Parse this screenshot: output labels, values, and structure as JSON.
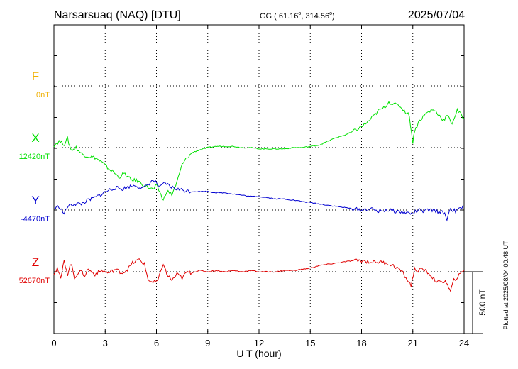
{
  "header": {
    "station": "Narsarsuaq (NAQ)  [DTU]",
    "coords_prefix": "GG ( 61.16",
    "coords_lon": ", 314.56",
    "coords_suffix": ")",
    "date": "2025/07/04"
  },
  "side_note": "Plotted at 2025/08/04 00:48 UT",
  "scale_bar_label": "500 nT",
  "colors": {
    "F": "#f0b000",
    "X": "#00e000",
    "Y": "#0000d0",
    "Z": "#e00000",
    "axis": "#000000"
  },
  "chart_data": {
    "type": "line",
    "xlabel": "U T (hour)",
    "xlim": [
      0,
      24
    ],
    "x_ticks": [
      0,
      3,
      6,
      9,
      12,
      15,
      18,
      21,
      24
    ],
    "scale_nT_per_bar": 500,
    "series": [
      {
        "name": "F",
        "baseline_label": "0nT",
        "baseline_nT": 0,
        "points": []
      },
      {
        "name": "X",
        "baseline_label": "12420nT",
        "baseline_nT": 12420,
        "points": [
          [
            0,
            12440
          ],
          [
            0.3,
            12470
          ],
          [
            0.6,
            12450
          ],
          [
            0.8,
            12490
          ],
          [
            1.0,
            12400
          ],
          [
            1.3,
            12420
          ],
          [
            1.6,
            12370
          ],
          [
            2.0,
            12350
          ],
          [
            2.4,
            12340
          ],
          [
            2.8,
            12300
          ],
          [
            3.2,
            12250
          ],
          [
            3.5,
            12220
          ],
          [
            3.8,
            12180
          ],
          [
            4.1,
            12210
          ],
          [
            4.5,
            12160
          ],
          [
            4.9,
            12150
          ],
          [
            5.2,
            12120
          ],
          [
            5.5,
            12100
          ],
          [
            5.8,
            12080
          ],
          [
            6.0,
            12110
          ],
          [
            6.2,
            12060
          ],
          [
            6.4,
            11990
          ],
          [
            6.6,
            12070
          ],
          [
            6.9,
            12040
          ],
          [
            7.2,
            12140
          ],
          [
            7.5,
            12280
          ],
          [
            7.8,
            12340
          ],
          [
            8.1,
            12380
          ],
          [
            8.5,
            12400
          ],
          [
            9.0,
            12420
          ],
          [
            9.5,
            12430
          ],
          [
            10.0,
            12430
          ],
          [
            10.5,
            12430
          ],
          [
            11.0,
            12420
          ],
          [
            11.5,
            12420
          ],
          [
            12.0,
            12410
          ],
          [
            12.5,
            12410
          ],
          [
            13.0,
            12410
          ],
          [
            13.5,
            12410
          ],
          [
            14.0,
            12420
          ],
          [
            14.5,
            12420
          ],
          [
            15.0,
            12430
          ],
          [
            15.5,
            12440
          ],
          [
            16.0,
            12470
          ],
          [
            16.5,
            12500
          ],
          [
            17.0,
            12520
          ],
          [
            17.5,
            12550
          ],
          [
            18.0,
            12590
          ],
          [
            18.3,
            12620
          ],
          [
            18.6,
            12660
          ],
          [
            19.0,
            12720
          ],
          [
            19.3,
            12740
          ],
          [
            19.6,
            12790
          ],
          [
            19.9,
            12770
          ],
          [
            20.2,
            12760
          ],
          [
            20.5,
            12720
          ],
          [
            20.8,
            12680
          ],
          [
            21.0,
            12460
          ],
          [
            21.1,
            12560
          ],
          [
            21.4,
            12640
          ],
          [
            21.8,
            12700
          ],
          [
            22.2,
            12730
          ],
          [
            22.5,
            12690
          ],
          [
            22.8,
            12640
          ],
          [
            23.0,
            12680
          ],
          [
            23.3,
            12620
          ],
          [
            23.6,
            12720
          ],
          [
            24.0,
            12660
          ]
        ]
      },
      {
        "name": "Y",
        "baseline_label": "-4470nT",
        "baseline_nT": -4470,
        "points": [
          [
            0,
            -4460
          ],
          [
            0.3,
            -4440
          ],
          [
            0.6,
            -4500
          ],
          [
            0.8,
            -4440
          ],
          [
            1.2,
            -4420
          ],
          [
            1.6,
            -4420
          ],
          [
            2.0,
            -4390
          ],
          [
            2.4,
            -4370
          ],
          [
            2.8,
            -4340
          ],
          [
            3.2,
            -4310
          ],
          [
            3.6,
            -4290
          ],
          [
            4.0,
            -4300
          ],
          [
            4.4,
            -4280
          ],
          [
            4.8,
            -4270
          ],
          [
            5.2,
            -4300
          ],
          [
            5.5,
            -4260
          ],
          [
            5.8,
            -4230
          ],
          [
            6.0,
            -4250
          ],
          [
            6.2,
            -4290
          ],
          [
            6.5,
            -4250
          ],
          [
            6.8,
            -4280
          ],
          [
            7.2,
            -4300
          ],
          [
            7.6,
            -4310
          ],
          [
            8.0,
            -4320
          ],
          [
            8.5,
            -4320
          ],
          [
            9.0,
            -4320
          ],
          [
            9.5,
            -4330
          ],
          [
            10.0,
            -4330
          ],
          [
            10.5,
            -4340
          ],
          [
            11.0,
            -4350
          ],
          [
            11.5,
            -4360
          ],
          [
            12.0,
            -4360
          ],
          [
            12.5,
            -4370
          ],
          [
            13.0,
            -4380
          ],
          [
            13.5,
            -4380
          ],
          [
            14.0,
            -4390
          ],
          [
            14.5,
            -4400
          ],
          [
            15.0,
            -4410
          ],
          [
            15.5,
            -4420
          ],
          [
            16.0,
            -4430
          ],
          [
            16.5,
            -4440
          ],
          [
            17.0,
            -4450
          ],
          [
            17.5,
            -4460
          ],
          [
            18.0,
            -4470
          ],
          [
            18.5,
            -4460
          ],
          [
            19.0,
            -4480
          ],
          [
            19.5,
            -4470
          ],
          [
            20.0,
            -4480
          ],
          [
            20.5,
            -4490
          ],
          [
            21.0,
            -4500
          ],
          [
            21.3,
            -4470
          ],
          [
            21.6,
            -4480
          ],
          [
            22.0,
            -4470
          ],
          [
            22.4,
            -4480
          ],
          [
            22.8,
            -4490
          ],
          [
            23.0,
            -4540
          ],
          [
            23.2,
            -4460
          ],
          [
            23.5,
            -4480
          ],
          [
            24.0,
            -4440
          ]
        ]
      },
      {
        "name": "Z",
        "baseline_label": "52670nT",
        "baseline_nT": 52670,
        "points": [
          [
            0,
            52660
          ],
          [
            0.2,
            52700
          ],
          [
            0.4,
            52610
          ],
          [
            0.6,
            52760
          ],
          [
            0.8,
            52650
          ],
          [
            1.0,
            52740
          ],
          [
            1.2,
            52620
          ],
          [
            1.5,
            52680
          ],
          [
            1.8,
            52640
          ],
          [
            2.0,
            52690
          ],
          [
            2.4,
            52650
          ],
          [
            2.8,
            52680
          ],
          [
            3.2,
            52660
          ],
          [
            3.6,
            52690
          ],
          [
            4.0,
            52660
          ],
          [
            4.3,
            52690
          ],
          [
            4.6,
            52740
          ],
          [
            5.0,
            52770
          ],
          [
            5.3,
            52730
          ],
          [
            5.5,
            52610
          ],
          [
            5.8,
            52580
          ],
          [
            6.1,
            52600
          ],
          [
            6.4,
            52740
          ],
          [
            6.6,
            52650
          ],
          [
            6.9,
            52600
          ],
          [
            7.2,
            52650
          ],
          [
            7.5,
            52620
          ],
          [
            7.8,
            52670
          ],
          [
            8.0,
            52660
          ],
          [
            8.5,
            52680
          ],
          [
            9.0,
            52670
          ],
          [
            9.5,
            52680
          ],
          [
            10.0,
            52670
          ],
          [
            10.5,
            52680
          ],
          [
            11.0,
            52670
          ],
          [
            11.5,
            52680
          ],
          [
            12.0,
            52670
          ],
          [
            12.5,
            52670
          ],
          [
            13.0,
            52670
          ],
          [
            13.5,
            52680
          ],
          [
            14.0,
            52680
          ],
          [
            14.5,
            52690
          ],
          [
            15.0,
            52700
          ],
          [
            15.5,
            52720
          ],
          [
            16.0,
            52730
          ],
          [
            16.5,
            52740
          ],
          [
            17.0,
            52750
          ],
          [
            17.5,
            52760
          ],
          [
            18.0,
            52760
          ],
          [
            18.5,
            52750
          ],
          [
            19.0,
            52750
          ],
          [
            19.5,
            52740
          ],
          [
            20.0,
            52710
          ],
          [
            20.3,
            52680
          ],
          [
            20.6,
            52620
          ],
          [
            20.9,
            52560
          ],
          [
            21.1,
            52690
          ],
          [
            21.3,
            52680
          ],
          [
            21.6,
            52690
          ],
          [
            22.0,
            52650
          ],
          [
            22.3,
            52600
          ],
          [
            22.6,
            52580
          ],
          [
            22.9,
            52600
          ],
          [
            23.1,
            52540
          ],
          [
            23.2,
            52510
          ],
          [
            23.4,
            52600
          ],
          [
            23.7,
            52640
          ],
          [
            24.0,
            52680
          ]
        ]
      }
    ]
  }
}
